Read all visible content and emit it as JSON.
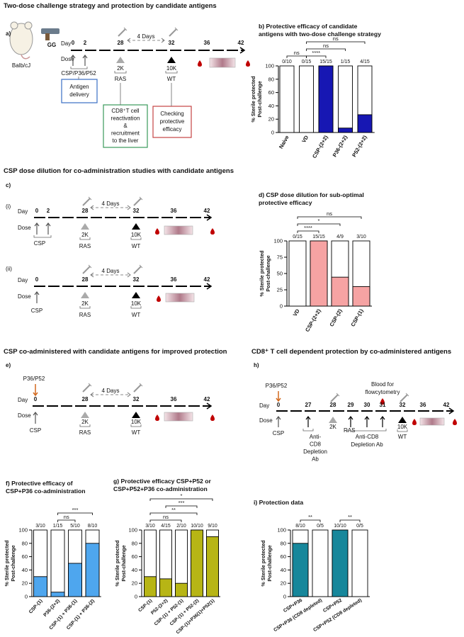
{
  "sections": [
    "Two-dose challenge strategy and protection by candidate antigens",
    "CSP dose dilution for co-administration studies with candidate antigens",
    "CSP co-administered with candidate antigens for improved protection",
    "CD8⁺ T cell dependent protection by co-administered antigens"
  ],
  "panel_a": {
    "label": "a)",
    "mouse": "Balb/cJ",
    "device": "GG",
    "day": "Day",
    "dose": "Dose",
    "days": [
      "0",
      "2",
      "28",
      "32",
      "36",
      "42"
    ],
    "interval": "4 Days",
    "antigens": "CSP/P36/P52",
    "ras": [
      "2K",
      "RAS"
    ],
    "wt": [
      "10K",
      "WT"
    ],
    "boxes": [
      [
        "Antigen",
        "delivery"
      ],
      [
        "CD8⁺T cell",
        "reactivation",
        "&",
        "recruitment",
        "to the liver"
      ],
      [
        "Checking",
        "protective",
        "efficacy"
      ]
    ]
  },
  "panel_c": {
    "label": "c)",
    "i": {
      "label": "(i)",
      "day": "Day",
      "dose": "Dose",
      "days": [
        "0",
        "2",
        "28",
        "32",
        "36",
        "42"
      ],
      "interval": "4 Days",
      "antigen": "CSP",
      "ras": [
        "2K",
        "RAS"
      ],
      "wt": [
        "10K",
        "WT"
      ]
    },
    "ii": {
      "label": "(ii)",
      "day": "Day",
      "dose": "Dose",
      "days": [
        "0",
        "28",
        "32",
        "36",
        "42"
      ],
      "interval": "4 Days",
      "antigen": "CSP",
      "ras": [
        "2K",
        "RAS"
      ],
      "wt": [
        "10K",
        "WT"
      ]
    }
  },
  "panel_e": {
    "label": "e)",
    "coadmin": "P36/P52",
    "day": "Day",
    "dose": "Dose",
    "days": [
      "0",
      "28",
      "32",
      "36",
      "42"
    ],
    "interval": "4 Days",
    "antigen": "CSP",
    "ras": [
      "2K",
      "RAS"
    ],
    "wt": [
      "10K",
      "WT"
    ]
  },
  "panel_h": {
    "label": "h)",
    "coadmin": "P36/P52",
    "day": "Day",
    "dose": "Dose",
    "days": [
      "0",
      "27",
      "28",
      "29",
      "30",
      "31",
      "32",
      "36",
      "42"
    ],
    "antigen": "CSP",
    "depletion_1": [
      "Anti-",
      "CD8",
      "Depletion",
      "Ab"
    ],
    "ras": [
      "2K",
      "RAS"
    ],
    "depletion_2": [
      "Anti-CD8",
      "Depletion Ab"
    ],
    "blood": [
      "Blood for",
      "flowcytometry"
    ],
    "wt": [
      "10K",
      "WT"
    ]
  },
  "chart_data": [
    {
      "type": "bar",
      "title": [
        "b) Protective efficacy of candidate",
        "antigens with two-dose challenge strategy"
      ],
      "ylabel": [
        "% Sterile protected",
        "Post-challenge"
      ],
      "categories": [
        "Naive",
        "VD",
        "CSP-(2+2)",
        "P36-(2+2)",
        "P52-(2+2)"
      ],
      "values": [
        0,
        0,
        100,
        6.7,
        26.7
      ],
      "value_labels": [
        "0/10",
        "0/15",
        "15/15",
        "1/15",
        "4/15"
      ],
      "color": "#1717b3",
      "ylim": [
        0,
        100
      ],
      "yticks": [
        0,
        20,
        40,
        60,
        80,
        100
      ],
      "significance": [
        {
          "between": [
            "Naive",
            "VD"
          ],
          "label": "ns"
        },
        {
          "between": [
            "VD",
            "CSP-(2+2)"
          ],
          "label": "****"
        },
        {
          "between": [
            "VD",
            "P36-(2+2)"
          ],
          "label": "ns"
        },
        {
          "between": [
            "VD",
            "P52-(2+2)"
          ],
          "label": "ns"
        }
      ]
    },
    {
      "type": "bar",
      "title": [
        "d) CSP dose dilution for sub-optimal",
        "protective efficacy"
      ],
      "ylabel": [
        "% Sterile protected",
        "Post-challenge"
      ],
      "categories": [
        "VD",
        "CSP-(2+2)",
        "CSP-(2)",
        "CSP-(1)"
      ],
      "values": [
        0,
        100,
        44.4,
        30
      ],
      "value_labels": [
        "0/15",
        "15/15",
        "4/9",
        "3/10"
      ],
      "color": "#f6a3a3",
      "ylim": [
        0,
        100
      ],
      "yticks": [
        0,
        25,
        50,
        75,
        100
      ],
      "significance": [
        {
          "between": [
            "VD",
            "CSP-(2+2)"
          ],
          "label": "****"
        },
        {
          "between": [
            "VD",
            "CSP-(2)"
          ],
          "label": "*"
        },
        {
          "between": [
            "VD",
            "CSP-(1)"
          ],
          "label": "ns"
        }
      ]
    },
    {
      "type": "bar",
      "title": [
        "f) Protective efficacy of",
        "CSP+P36 co-administration"
      ],
      "ylabel": [
        "% Sterile protected",
        "Post-challenge"
      ],
      "categories": [
        "CSP-(1)",
        "P36-(2+2)",
        "CSP-(1) + P36-(1)",
        "CSP-(1) + P36-(2)"
      ],
      "values": [
        30,
        6.7,
        50,
        80
      ],
      "value_labels": [
        "3/10",
        "1/15",
        "5/10",
        "8/10"
      ],
      "color": "#4ea6ee",
      "ylim": [
        0,
        100
      ],
      "yticks": [
        0,
        20,
        40,
        60,
        80,
        100
      ],
      "significance": [
        {
          "between": [
            "P36-(2+2)",
            "CSP-(1) + P36-(1)"
          ],
          "label": "ns"
        },
        {
          "between": [
            "P36-(2+2)",
            "CSP-(1) + P36-(2)"
          ],
          "label": "***"
        }
      ]
    },
    {
      "type": "bar",
      "title": [
        "g) Protective efficacy CSP+P52 or",
        "CSP+P52+P36 co-administration"
      ],
      "ylabel": [
        "% Sterile protected",
        "Post-challenge"
      ],
      "categories": [
        "CSP-(1)",
        "P52-(2+2)",
        "CSP-(1) + P52-(1)",
        "CSP-(1) + P52-(2)",
        "CSP-(1)+P36(1)+P52(1)"
      ],
      "values": [
        30,
        26.7,
        20,
        100,
        90
      ],
      "value_labels": [
        "3/10",
        "4/15",
        "2/10",
        "10/10",
        "9/10"
      ],
      "color": "#b7b515",
      "ylim": [
        0,
        100
      ],
      "yticks": [
        0,
        20,
        40,
        60,
        80,
        100
      ],
      "significance": [
        {
          "between": [
            "CSP-(1)",
            "CSP-(1) + P52-(1)"
          ],
          "label": "ns"
        },
        {
          "between": [
            "CSP-(1)",
            "CSP-(1) + P52-(2)"
          ],
          "label": "**"
        },
        {
          "between": [
            "P52-(2+2)",
            "CSP-(1) + P52-(2)"
          ],
          "label": "***"
        },
        {
          "between": [
            "CSP-(1)",
            "CSP-(1)+P36(1)+P52(1)"
          ],
          "label": "*"
        }
      ]
    },
    {
      "type": "bar",
      "title": [
        "i) Protection data"
      ],
      "ylabel": [
        "% Sterile protected",
        "Post-challenge"
      ],
      "categories": [
        "CSP+P36",
        "CSP+P36 (CD8 depleted)",
        "CSP+P52",
        "CSP+P52 (CD8 depleted)"
      ],
      "values": [
        80,
        0,
        100,
        0
      ],
      "value_labels": [
        "8/10",
        "0/5",
        "10/10",
        "0/5"
      ],
      "color": "#17879b",
      "ylim": [
        0,
        100
      ],
      "yticks": [
        0,
        20,
        40,
        60,
        80,
        100
      ],
      "significance": [
        {
          "between": [
            "CSP+P36",
            "CSP+P36 (CD8 depleted)"
          ],
          "label": "**"
        },
        {
          "between": [
            "CSP+P52",
            "CSP+P52 (CD8 depleted)"
          ],
          "label": "**"
        }
      ]
    }
  ]
}
